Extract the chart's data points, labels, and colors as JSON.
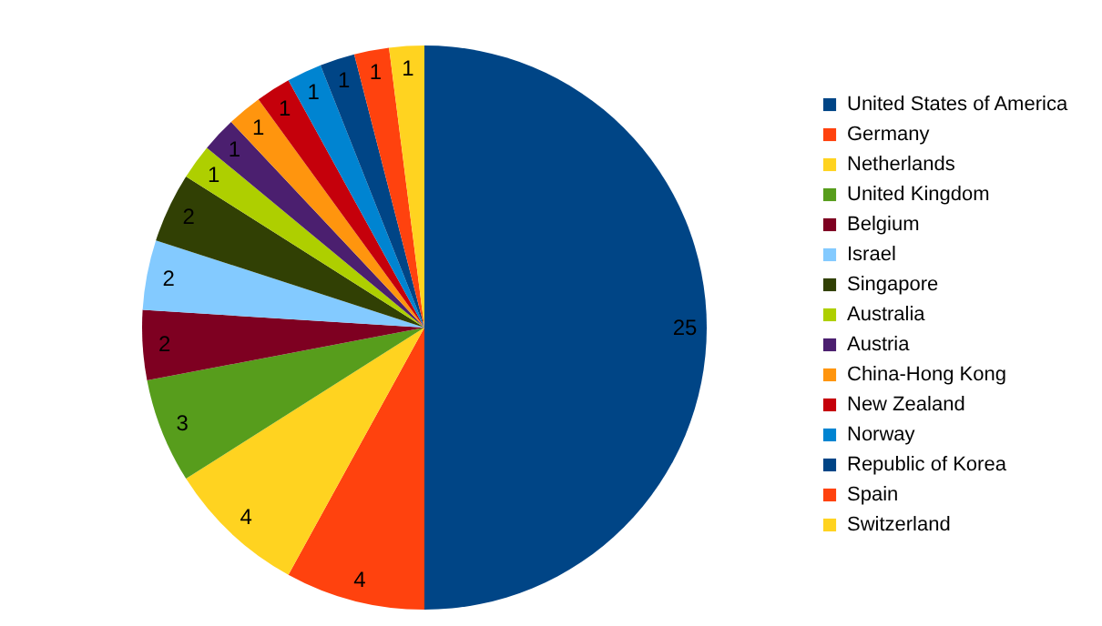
{
  "chart_data": {
    "type": "pie",
    "categories": [
      "United States of America",
      "Germany",
      "Netherlands",
      "United Kingdom",
      "Belgium",
      "Israel",
      "Singapore",
      "Australia",
      "Austria",
      "China-Hong Kong",
      "New Zealand",
      "Norway",
      "Republic of Korea",
      "Spain",
      "Switzerland"
    ],
    "values": [
      25,
      4,
      4,
      3,
      2,
      2,
      2,
      1,
      1,
      1,
      1,
      1,
      1,
      1,
      1
    ],
    "colors": [
      "#004586",
      "#ff420e",
      "#ffd320",
      "#579d1c",
      "#7e0021",
      "#83caff",
      "#314004",
      "#aecf00",
      "#4b1f6f",
      "#ff950e",
      "#c5000b",
      "#0084d1",
      "#004586",
      "#ff420e",
      "#ffd320"
    ],
    "data_labels": true,
    "legend": "right"
  }
}
